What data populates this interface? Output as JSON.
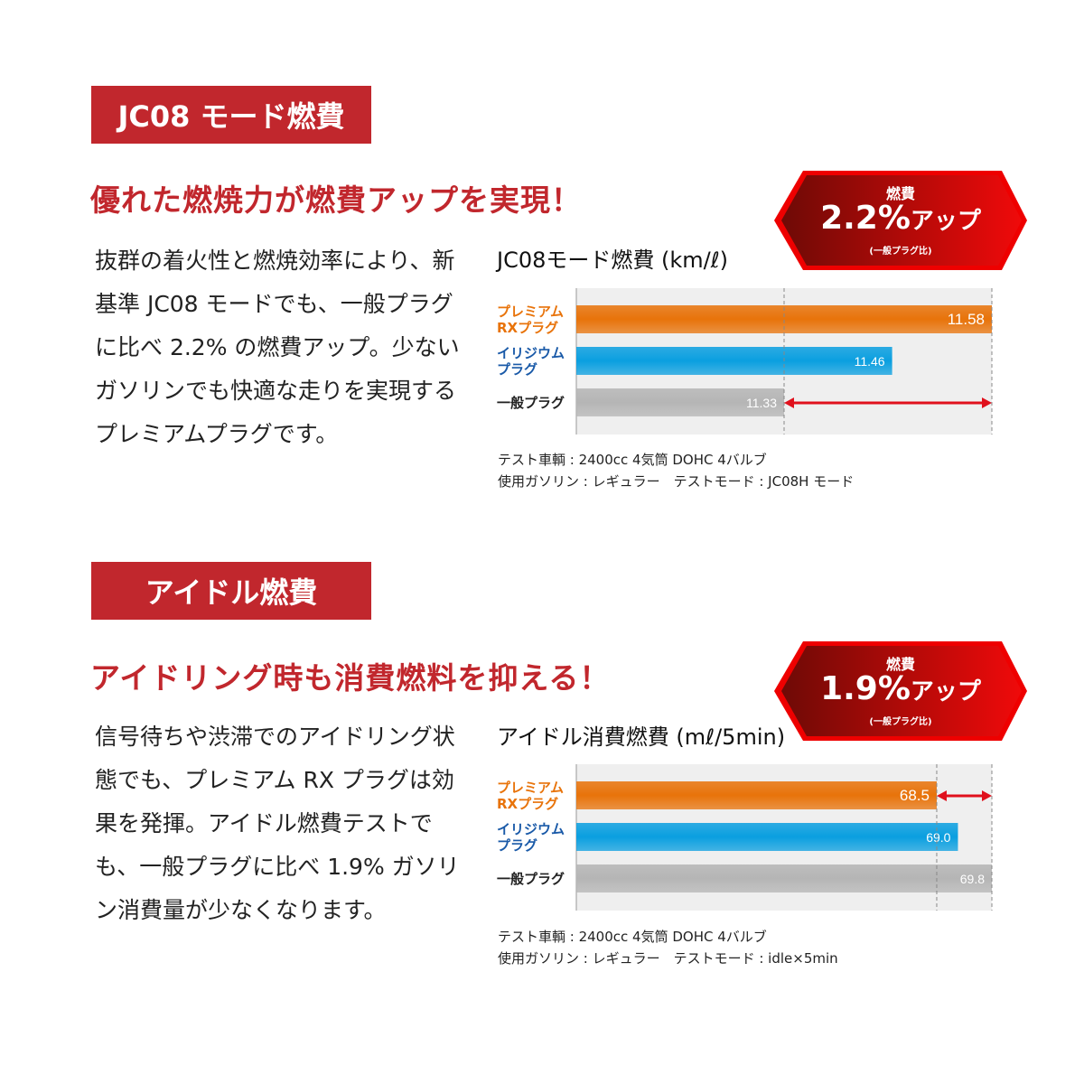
{
  "sections": [
    {
      "banner": "JC08 モード燃費",
      "headline": "優れた燃焼力が燃費アップを実現！",
      "body": "抜群の着火性と燃焼効率により、新基準 JC08 モードでも、一般プラグに比べ 2.2% の燃費アップ。少ないガソリンでも快適な走りを実現するプレミアムプラグです。",
      "badge": {
        "top": "燃費",
        "value": "2.2%",
        "suffix": "アップ",
        "note": "(一般プラグ比)"
      },
      "notes": [
        "テスト車輌 : 2400cc 4気筒 DOHC 4バルブ",
        "使用ガソリン : レギュラー　テストモード : JC08H モード"
      ]
    },
    {
      "banner": "アイドル燃費",
      "headline": "アイドリング時も消費燃料を抑える！",
      "body": "信号待ちや渋滞でのアイドリング状態でも、プレミアム RX プラグは効果を発揮。アイドル燃費テストでも、一般プラグに比べ 1.9% ガソリン消費量が少なくなります。",
      "badge": {
        "top": "燃費",
        "value": "1.9%",
        "suffix": "アップ",
        "note": "(一般プラグ比)"
      },
      "notes": [
        "テスト車輌 : 2400cc 4気筒 DOHC 4バルブ",
        "使用ガソリン : レギュラー　テストモード : idle×5min"
      ]
    }
  ],
  "colors": {
    "accent": "#c1272d",
    "premium": "#e8730a",
    "iridium": "#0a9fe0",
    "standard": "#b5b5b5",
    "arrow": "#e0101c"
  },
  "chart_data": [
    {
      "type": "bar",
      "orientation": "horizontal",
      "title": "JC08モード燃費 (km/ℓ)",
      "categories": [
        "プレミアム RXプラグ",
        "イリジウム プラグ",
        "一般プラグ"
      ],
      "values": [
        11.58,
        11.46,
        11.33
      ],
      "value_labels": [
        "11.58",
        "11.46",
        "11.33"
      ],
      "xlim": [
        11.08,
        11.58
      ],
      "reference_lines": [
        11.33,
        11.58
      ],
      "arrow": [
        11.33,
        11.58
      ],
      "grid": false
    },
    {
      "type": "bar",
      "orientation": "horizontal",
      "title": "アイドル消費燃費 (mℓ/5min)",
      "categories": [
        "プレミアム RXプラグ",
        "イリジウム プラグ",
        "一般プラグ"
      ],
      "values": [
        68.5,
        69.0,
        69.8
      ],
      "value_labels": [
        "68.5",
        "69.0",
        "69.8"
      ],
      "xlim": [
        60.0,
        69.8
      ],
      "reference_lines": [
        68.5,
        69.8
      ],
      "arrow": [
        68.5,
        69.8
      ],
      "grid": false
    }
  ]
}
